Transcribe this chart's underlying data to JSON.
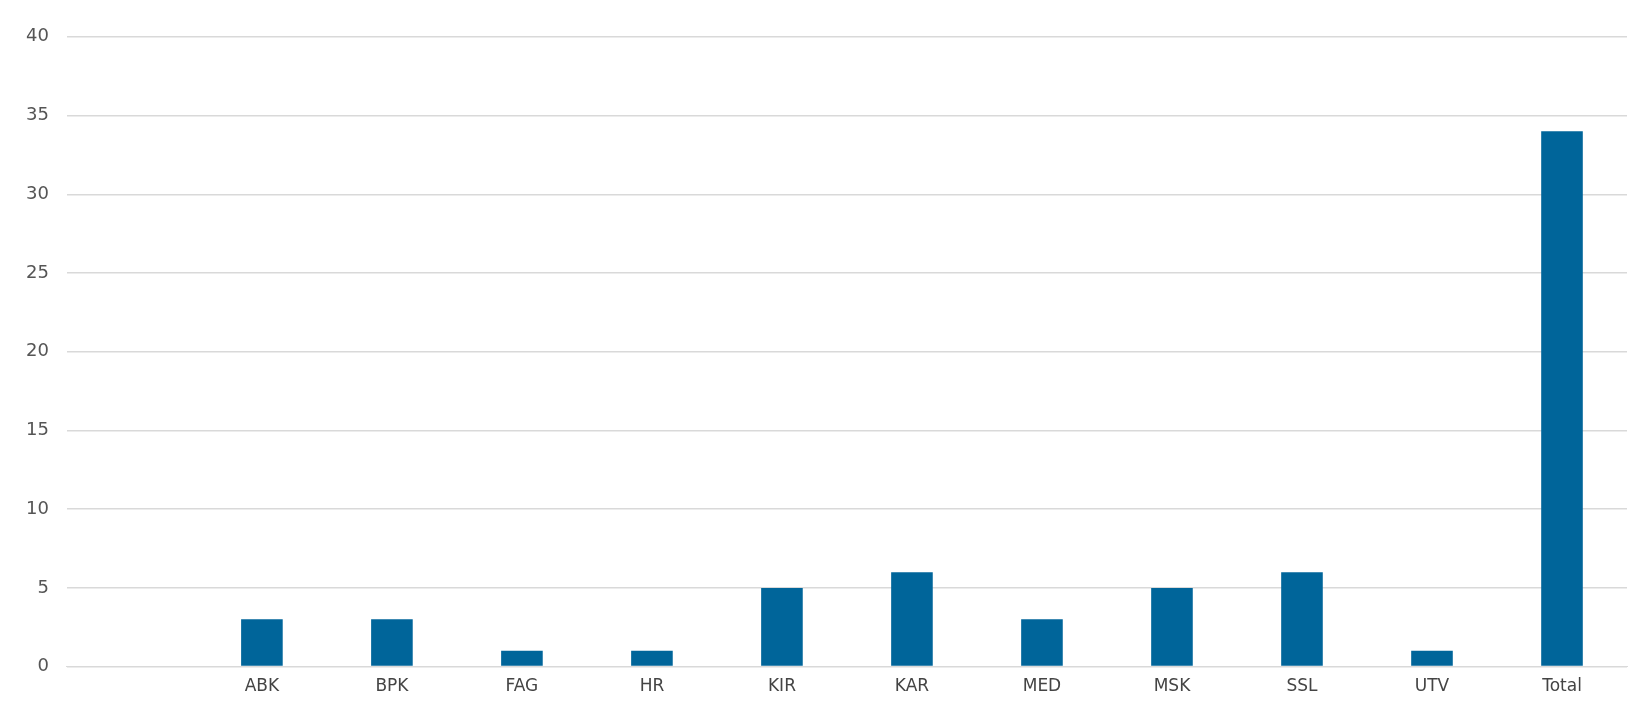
{
  "chart_data": {
    "type": "bar",
    "categories": [
      null,
      "ABK",
      "BPK",
      "FAG",
      "HR",
      "KIR",
      "KAR",
      "MED",
      "MSK",
      "SSL",
      "UTV",
      "Total"
    ],
    "values": [
      null,
      3,
      3,
      1,
      1,
      5,
      6,
      3,
      5,
      6,
      1,
      34
    ],
    "color": "#00659a",
    "ylim": [
      0,
      40
    ],
    "yticks": [
      0,
      5,
      10,
      15,
      20,
      25,
      30,
      35,
      40
    ],
    "grid": "y",
    "legend": false
  }
}
